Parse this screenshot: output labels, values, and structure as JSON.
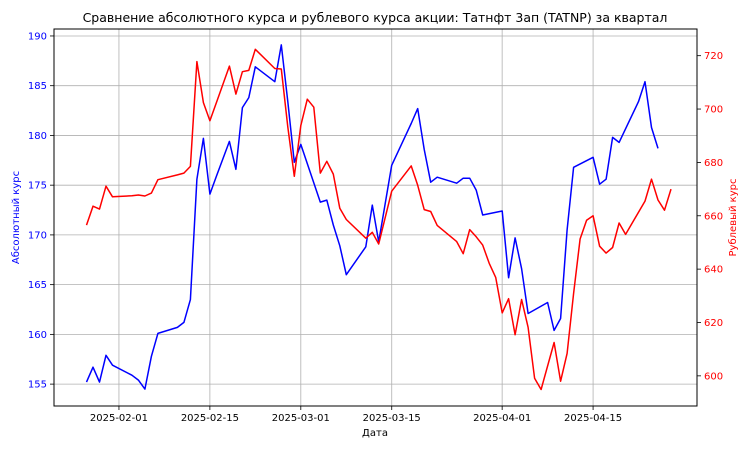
{
  "chart_data": {
    "type": "line",
    "title": "Сравнение абсолютного курса и рублевого курса акции: Татнфт 3ап (TATNP) за квартал",
    "xlabel": "Дата",
    "ylabel_left": "Абсолютный курс",
    "ylabel_right": "Рублевый курс",
    "x_ticks": [
      "2025-02-01",
      "2025-02-15",
      "2025-03-01",
      "2025-03-15",
      "2025-04-01",
      "2025-04-15"
    ],
    "y_left_ticks": [
      "155",
      "160",
      "165",
      "170",
      "175",
      "180",
      "185",
      "190"
    ],
    "y_right_ticks": [
      "600",
      "620",
      "640",
      "660",
      "680",
      "700",
      "720"
    ],
    "ylim_left": [
      152.8,
      190.7
    ],
    "ylim_right": [
      588.7,
      730.0
    ],
    "xlim": [
      "2025-01-22",
      "2025-05-01"
    ],
    "grid": true,
    "colors": {
      "left": "#0000ff",
      "right": "#ff0000"
    },
    "series": [
      {
        "axis": "left",
        "color": "#0000ff",
        "points": [
          [
            "2025-01-27",
            155.2
          ],
          [
            "2025-01-28",
            156.7
          ],
          [
            "2025-01-29",
            155.2
          ],
          [
            "2025-01-30",
            157.9
          ],
          [
            "2025-01-31",
            156.9
          ],
          [
            "2025-02-03",
            155.9
          ],
          [
            "2025-02-04",
            155.4
          ],
          [
            "2025-02-05",
            154.5
          ],
          [
            "2025-02-06",
            157.8
          ],
          [
            "2025-02-07",
            160.1
          ],
          [
            "2025-02-10",
            160.7
          ],
          [
            "2025-02-11",
            161.2
          ],
          [
            "2025-02-12",
            163.5
          ],
          [
            "2025-02-13",
            175.6
          ],
          [
            "2025-02-14",
            179.7
          ],
          [
            "2025-02-15",
            174.1
          ],
          [
            "2025-02-16",
            175.9
          ],
          [
            "2025-02-18",
            179.4
          ],
          [
            "2025-02-19",
            176.6
          ],
          [
            "2025-02-20",
            182.8
          ],
          [
            "2025-02-21",
            183.8
          ],
          [
            "2025-02-22",
            186.9
          ],
          [
            "2025-02-25",
            185.4
          ],
          [
            "2025-02-26",
            189.1
          ],
          [
            "2025-02-27",
            183.4
          ],
          [
            "2025-02-28",
            177.3
          ],
          [
            "2025-03-01",
            179.1
          ],
          [
            "2025-03-04",
            173.3
          ],
          [
            "2025-03-05",
            173.5
          ],
          [
            "2025-03-06",
            171.0
          ],
          [
            "2025-03-07",
            168.9
          ],
          [
            "2025-03-08",
            166.0
          ],
          [
            "2025-03-11",
            168.8
          ],
          [
            "2025-03-12",
            173.0
          ],
          [
            "2025-03-13",
            169.3
          ],
          [
            "2025-03-15",
            177.0
          ],
          [
            "2025-03-18",
            181.2
          ],
          [
            "2025-03-19",
            182.7
          ],
          [
            "2025-03-20",
            178.6
          ],
          [
            "2025-03-21",
            175.3
          ],
          [
            "2025-03-22",
            175.8
          ],
          [
            "2025-03-25",
            175.2
          ],
          [
            "2025-03-26",
            175.7
          ],
          [
            "2025-03-27",
            175.7
          ],
          [
            "2025-03-28",
            174.5
          ],
          [
            "2025-03-29",
            172.0
          ],
          [
            "2025-04-01",
            172.4
          ],
          [
            "2025-04-02",
            165.7
          ],
          [
            "2025-04-03",
            169.7
          ],
          [
            "2025-04-04",
            166.6
          ],
          [
            "2025-04-05",
            162.1
          ],
          [
            "2025-04-08",
            163.2
          ],
          [
            "2025-04-09",
            160.4
          ],
          [
            "2025-04-10",
            161.6
          ],
          [
            "2025-04-11",
            170.5
          ],
          [
            "2025-04-12",
            176.8
          ],
          [
            "2025-04-15",
            177.8
          ],
          [
            "2025-04-16",
            175.1
          ],
          [
            "2025-04-17",
            175.6
          ],
          [
            "2025-04-18",
            179.8
          ],
          [
            "2025-04-19",
            179.3
          ],
          [
            "2025-04-22",
            183.4
          ],
          [
            "2025-04-23",
            185.4
          ],
          [
            "2025-04-24",
            180.8
          ],
          [
            "2025-04-25",
            178.7
          ]
        ]
      },
      {
        "axis": "right",
        "color": "#ff0000",
        "points": [
          [
            "2025-01-27",
            656.5
          ],
          [
            "2025-01-28",
            663.6
          ],
          [
            "2025-01-29",
            662.5
          ],
          [
            "2025-01-30",
            671.1
          ],
          [
            "2025-01-31",
            667.1
          ],
          [
            "2025-02-03",
            667.5
          ],
          [
            "2025-02-04",
            667.8
          ],
          [
            "2025-02-05",
            667.4
          ],
          [
            "2025-02-06",
            668.5
          ],
          [
            "2025-02-07",
            673.5
          ],
          [
            "2025-02-10",
            675.3
          ],
          [
            "2025-02-11",
            676.0
          ],
          [
            "2025-02-12",
            678.5
          ],
          [
            "2025-02-13",
            717.8
          ],
          [
            "2025-02-14",
            702.4
          ],
          [
            "2025-02-15",
            695.6
          ],
          [
            "2025-02-16",
            702.4
          ],
          [
            "2025-02-18",
            716.1
          ],
          [
            "2025-02-19",
            705.6
          ],
          [
            "2025-02-20",
            714.0
          ],
          [
            "2025-02-21",
            714.5
          ],
          [
            "2025-02-22",
            722.4
          ],
          [
            "2025-02-25",
            715.2
          ],
          [
            "2025-02-26",
            715.0
          ],
          [
            "2025-02-27",
            693.3
          ],
          [
            "2025-02-28",
            674.8
          ],
          [
            "2025-03-01",
            693.8
          ],
          [
            "2025-03-02",
            703.7
          ],
          [
            "2025-03-03",
            700.7
          ],
          [
            "2025-03-04",
            676.0
          ],
          [
            "2025-03-05",
            680.4
          ],
          [
            "2025-03-06",
            675.6
          ],
          [
            "2025-03-07",
            662.8
          ],
          [
            "2025-03-08",
            658.6
          ],
          [
            "2025-03-11",
            651.6
          ],
          [
            "2025-03-12",
            653.8
          ],
          [
            "2025-03-13",
            649.4
          ],
          [
            "2025-03-15",
            669.2
          ],
          [
            "2025-03-18",
            678.7
          ],
          [
            "2025-03-19",
            671.4
          ],
          [
            "2025-03-20",
            662.3
          ],
          [
            "2025-03-21",
            661.6
          ],
          [
            "2025-03-22",
            656.4
          ],
          [
            "2025-03-25",
            650.3
          ],
          [
            "2025-03-26",
            645.8
          ],
          [
            "2025-03-27",
            654.8
          ],
          [
            "2025-03-28",
            652.1
          ],
          [
            "2025-03-29",
            649.0
          ],
          [
            "2025-03-30",
            642.2
          ],
          [
            "2025-03-31",
            636.9
          ],
          [
            "2025-04-01",
            623.6
          ],
          [
            "2025-04-02",
            628.9
          ],
          [
            "2025-04-03",
            615.4
          ],
          [
            "2025-04-04",
            628.6
          ],
          [
            "2025-04-05",
            618.2
          ],
          [
            "2025-04-06",
            599.1
          ],
          [
            "2025-04-07",
            594.9
          ],
          [
            "2025-04-09",
            612.5
          ],
          [
            "2025-04-10",
            598.0
          ],
          [
            "2025-04-11",
            608.4
          ],
          [
            "2025-04-12",
            630.9
          ],
          [
            "2025-04-13",
            651.3
          ],
          [
            "2025-04-14",
            658.3
          ],
          [
            "2025-04-15",
            660.0
          ],
          [
            "2025-04-16",
            648.6
          ],
          [
            "2025-04-17",
            646.0
          ],
          [
            "2025-04-18",
            648.1
          ],
          [
            "2025-04-19",
            657.3
          ],
          [
            "2025-04-20",
            653.0
          ],
          [
            "2025-04-23",
            665.5
          ],
          [
            "2025-04-24",
            673.7
          ],
          [
            "2025-04-25",
            665.9
          ],
          [
            "2025-04-26",
            662.1
          ],
          [
            "2025-04-27",
            670.0
          ]
        ]
      }
    ]
  }
}
